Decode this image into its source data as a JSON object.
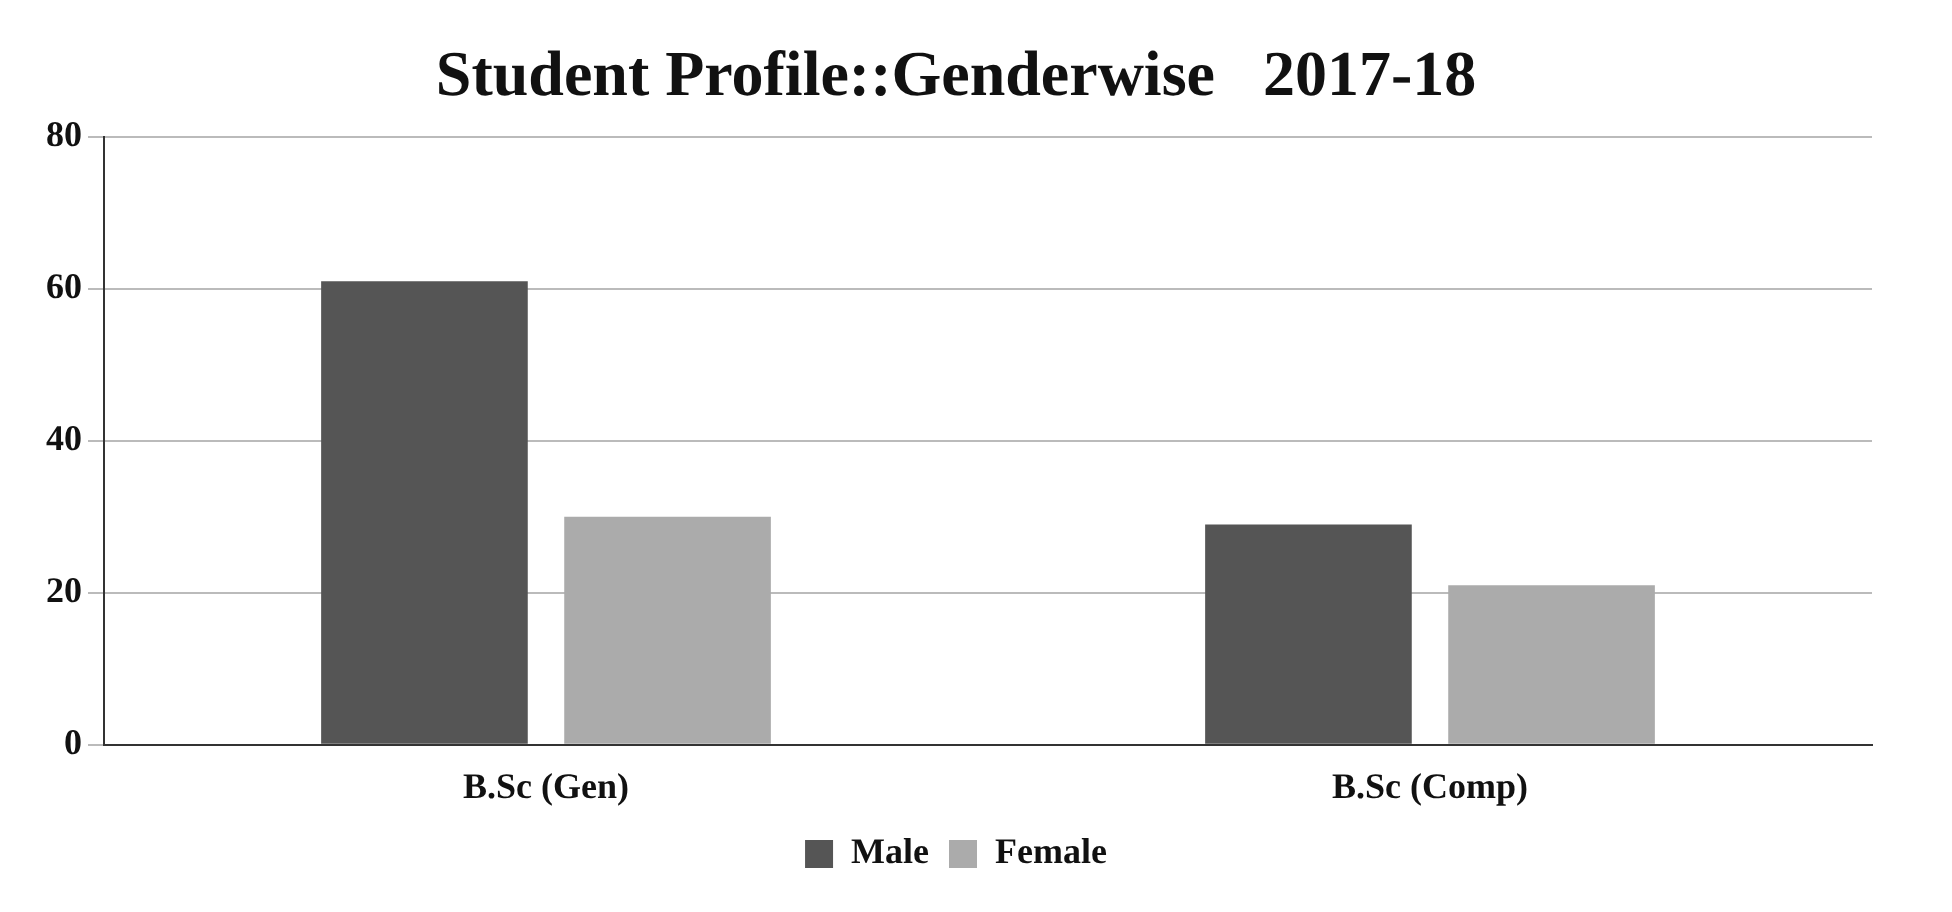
{
  "chart_data": {
    "type": "bar",
    "title": "Student Profile::Genderwise   2017-18",
    "categories": [
      "B.Sc (Gen)",
      "B.Sc (Comp)"
    ],
    "series": [
      {
        "name": "Male",
        "color": "#555555",
        "values": [
          61,
          29
        ]
      },
      {
        "name": "Female",
        "color": "#ababab",
        "values": [
          30,
          21
        ]
      }
    ],
    "ylim": [
      0,
      80
    ],
    "yticks": [
      0,
      20,
      40,
      60,
      80
    ],
    "grid": "y",
    "legend": "bottom"
  }
}
